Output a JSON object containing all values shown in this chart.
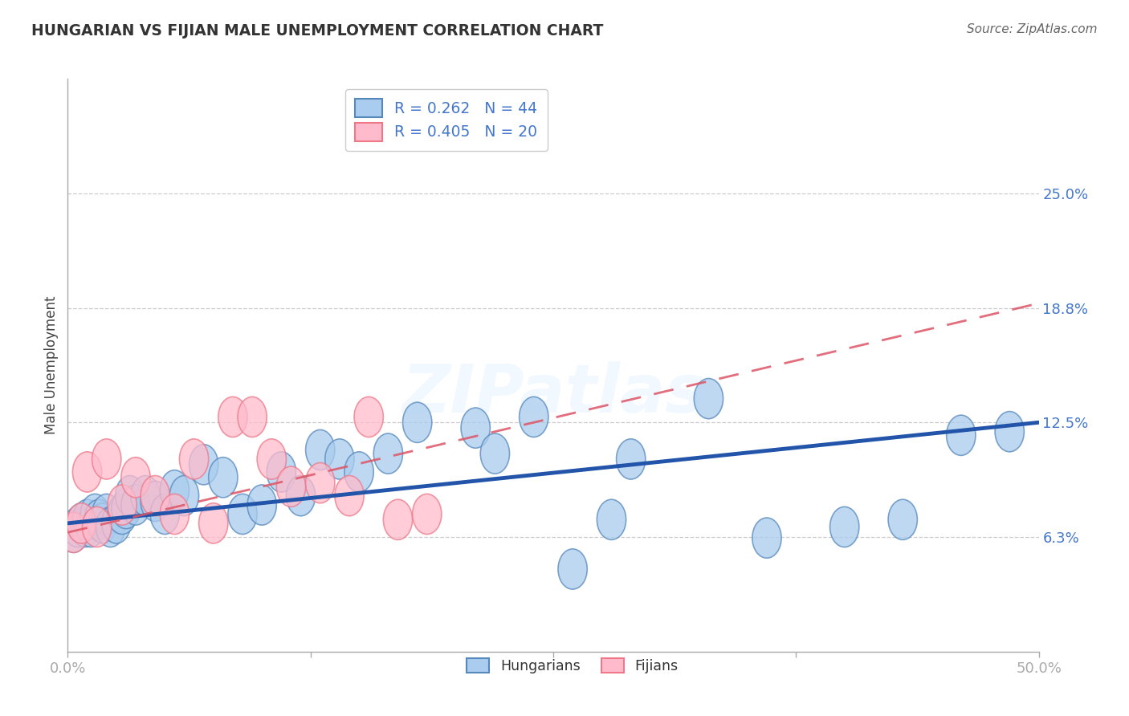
{
  "title": "HUNGARIAN VS FIJIAN MALE UNEMPLOYMENT CORRELATION CHART",
  "source": "Source: ZipAtlas.com",
  "ylabel": "Male Unemployment",
  "xlim": [
    0.0,
    50.0
  ],
  "ylim": [
    0.0,
    31.25
  ],
  "yticks": [
    6.25,
    12.5,
    18.75,
    25.0
  ],
  "xticks": [
    0.0,
    12.5,
    25.0,
    37.5,
    50.0
  ],
  "xtick_labels": [
    "0.0%",
    "",
    "",
    "",
    "50.0%"
  ],
  "ytick_labels": [
    "6.3%",
    "12.5%",
    "18.8%",
    "25.0%"
  ],
  "hungarian_R": "0.262",
  "hungarian_N": "44",
  "fijian_R": "0.405",
  "fijian_N": "20",
  "blue_face": "#AACCEE",
  "blue_edge": "#5588BB",
  "pink_face": "#FFBBCC",
  "pink_edge": "#EE7788",
  "blue_line_color": "#2255AA",
  "pink_line_color": "#DD5566",
  "grid_color": "#CCCCCC",
  "watermark": "ZIPatlas",
  "hungarian_x": [
    0.3,
    0.5,
    0.7,
    0.9,
    1.0,
    1.2,
    1.4,
    1.6,
    1.8,
    2.0,
    2.2,
    2.5,
    2.8,
    3.0,
    3.2,
    3.5,
    4.0,
    4.5,
    5.0,
    5.5,
    6.0,
    7.0,
    8.0,
    9.0,
    10.0,
    11.0,
    12.0,
    13.0,
    14.0,
    15.0,
    16.5,
    18.0,
    21.0,
    22.0,
    24.0,
    26.0,
    28.0,
    29.0,
    33.0,
    36.0,
    40.0,
    43.0,
    46.0,
    48.5
  ],
  "hungarian_y": [
    6.5,
    6.8,
    7.0,
    6.8,
    7.2,
    6.8,
    7.5,
    7.2,
    7.0,
    7.5,
    6.8,
    7.0,
    7.5,
    7.8,
    8.5,
    8.0,
    8.5,
    8.2,
    7.5,
    8.8,
    8.5,
    10.2,
    9.5,
    7.5,
    8.0,
    9.8,
    8.5,
    11.0,
    10.5,
    9.8,
    10.8,
    12.5,
    12.2,
    10.8,
    12.8,
    4.5,
    7.2,
    10.5,
    13.8,
    6.2,
    6.8,
    7.2,
    11.8,
    12.0
  ],
  "fijian_x": [
    0.3,
    0.7,
    1.0,
    1.5,
    2.0,
    2.8,
    3.5,
    4.5,
    5.5,
    6.5,
    7.5,
    8.5,
    9.5,
    10.5,
    11.5,
    13.0,
    14.5,
    15.5,
    17.0,
    18.5
  ],
  "fijian_y": [
    6.5,
    7.0,
    9.8,
    6.8,
    10.5,
    8.0,
    9.5,
    8.5,
    7.5,
    10.5,
    7.0,
    12.8,
    12.8,
    10.5,
    9.0,
    9.2,
    8.5,
    12.8,
    7.2,
    7.5
  ],
  "hu_line_x0": 0.0,
  "hu_line_y0": 7.0,
  "hu_line_x1": 50.0,
  "hu_line_y1": 12.5,
  "fi_line_x0": 0.0,
  "fi_line_y0": 6.5,
  "fi_line_x1": 50.0,
  "fi_line_y1": 19.0
}
